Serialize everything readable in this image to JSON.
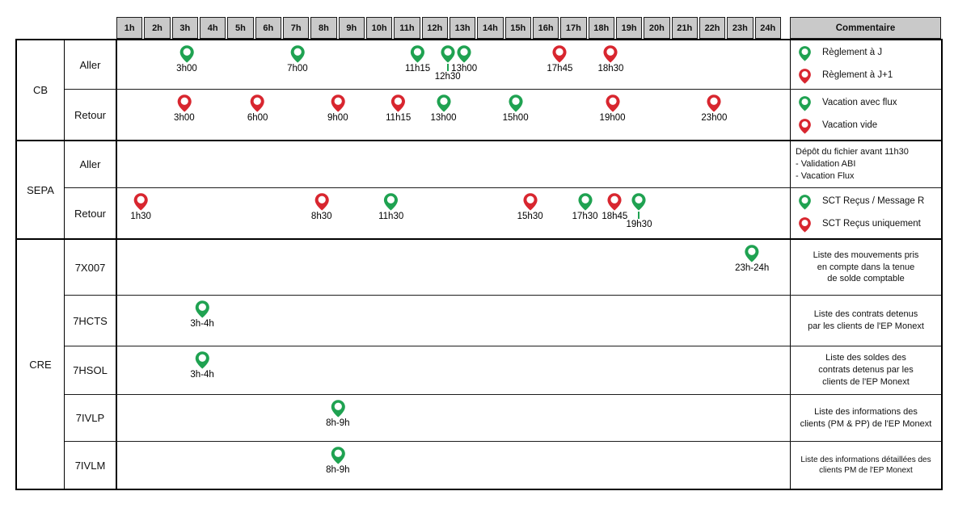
{
  "colors": {
    "green": "#1fa251",
    "red": "#d8262f",
    "header_bg": "#c9c9c9",
    "border": "#000000"
  },
  "header": {
    "hours": [
      "1h",
      "2h",
      "3h",
      "4h",
      "5h",
      "6h",
      "7h",
      "8h",
      "9h",
      "10h",
      "11h",
      "12h",
      "13h",
      "14h",
      "15h",
      "16h",
      "17h",
      "18h",
      "19h",
      "20h",
      "21h",
      "22h",
      "23h",
      "24h"
    ],
    "comment_label": "Commentaire"
  },
  "groups": [
    {
      "name": "CB",
      "rows": [
        {
          "label": "Aller",
          "markers": [
            {
              "time": "3h00",
              "color": "green",
              "pos": 2.48
            },
            {
              "time": "7h00",
              "color": "green",
              "pos": 6.43
            },
            {
              "time": "11h15",
              "color": "green",
              "pos": 10.72
            },
            {
              "time": "12h30",
              "color": "green",
              "pos": 11.79,
              "low_label": true
            },
            {
              "time": "13h00",
              "color": "green",
              "pos": 12.38
            },
            {
              "time": "17h45",
              "color": "red",
              "pos": 15.79
            },
            {
              "time": "18h30",
              "color": "red",
              "pos": 17.61
            }
          ],
          "comment": {
            "type": "legend",
            "items": [
              {
                "color": "green",
                "text": "Règlement à J"
              },
              {
                "color": "red",
                "text": "Règlement à J+1"
              }
            ]
          }
        },
        {
          "label": "Retour",
          "markers": [
            {
              "time": "3h00",
              "color": "red",
              "pos": 2.39
            },
            {
              "time": "6h00",
              "color": "red",
              "pos": 5.01
            },
            {
              "time": "9h00",
              "color": "red",
              "pos": 7.87
            },
            {
              "time": "11h15",
              "color": "red",
              "pos": 10.03
            },
            {
              "time": "13h00",
              "color": "green",
              "pos": 11.64
            },
            {
              "time": "15h00",
              "color": "green",
              "pos": 14.21
            },
            {
              "time": "19h00",
              "color": "red",
              "pos": 17.67
            },
            {
              "time": "23h00",
              "color": "red",
              "pos": 21.3
            }
          ],
          "comment": {
            "type": "legend",
            "items": [
              {
                "color": "green",
                "text": "Vacation avec flux"
              },
              {
                "color": "red",
                "text": "Vacation vide"
              }
            ]
          }
        }
      ]
    },
    {
      "name": "SEPA",
      "rows": [
        {
          "label": "Aller",
          "markers": [],
          "comment": {
            "type": "lines",
            "align": "left",
            "lines": [
              "Dépôt du fichier avant 11h30",
              "- Validation ABI",
              "- Vacation Flux"
            ]
          }
        },
        {
          "label": "Retour",
          "markers": [
            {
              "time": "1h30",
              "color": "red",
              "pos": 0.84
            },
            {
              "time": "8h30",
              "color": "red",
              "pos": 7.29
            },
            {
              "time": "11h30",
              "color": "green",
              "pos": 9.77
            },
            {
              "time": "15h30",
              "color": "red",
              "pos": 14.73
            },
            {
              "time": "17h30",
              "color": "green",
              "pos": 16.69
            },
            {
              "time": "18h45",
              "color": "red",
              "pos": 17.75
            },
            {
              "time": "19h30",
              "color": "green",
              "pos": 18.62,
              "low_label": true
            }
          ],
          "comment": {
            "type": "legend",
            "items": [
              {
                "color": "green",
                "text": "SCT Reçus / Message R"
              },
              {
                "color": "red",
                "text": "SCT Reçus uniquement"
              }
            ]
          }
        }
      ]
    },
    {
      "name": "CRE",
      "rows": [
        {
          "label": "7X007",
          "markers": [
            {
              "time": "23h-24h",
              "color": "green",
              "pos": 22.65
            }
          ],
          "comment": {
            "type": "lines",
            "align": "center",
            "lines": [
              "Liste des mouvements pris",
              "en compte dans la tenue",
              "de solde comptable"
            ]
          }
        },
        {
          "label": "7HCTS",
          "markers": [
            {
              "time": "3h-4h",
              "color": "green",
              "pos": 3.03
            }
          ],
          "comment": {
            "type": "lines",
            "align": "center",
            "lines": [
              "Liste des contrats detenus",
              "par les clients de l'EP Monext"
            ]
          }
        },
        {
          "label": "7HSOL",
          "markers": [
            {
              "time": "3h-4h",
              "color": "green",
              "pos": 3.03
            }
          ],
          "comment": {
            "type": "lines",
            "align": "center",
            "lines": [
              "Liste des soldes des",
              "contrats detenus par les",
              "clients de l'EP Monext"
            ]
          }
        },
        {
          "label": "7IVLP",
          "markers": [
            {
              "time": "8h-9h",
              "color": "green",
              "pos": 7.87
            }
          ],
          "comment": {
            "type": "lines",
            "align": "center",
            "lines": [
              "Liste des informations des",
              "clients (PM & PP) de l'EP Monext"
            ]
          }
        },
        {
          "label": "7IVLM",
          "markers": [
            {
              "time": "8h-9h",
              "color": "green",
              "pos": 7.87
            }
          ],
          "comment": {
            "type": "lines",
            "align": "center",
            "small": true,
            "lines": [
              "Liste des informations détaillées des",
              "clients PM de l'EP Monext"
            ]
          }
        }
      ]
    }
  ]
}
